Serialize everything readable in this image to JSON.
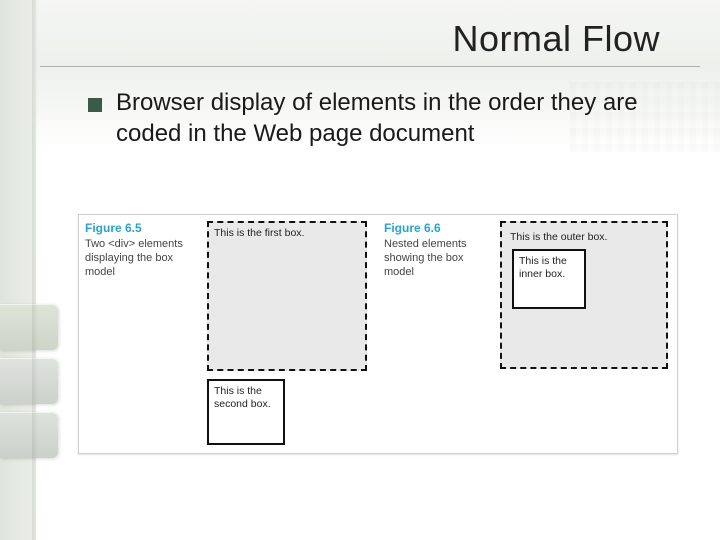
{
  "slide": {
    "title": "Normal Flow",
    "bullet": "Browser display of elements in the order they are coded in the Web page document",
    "colors": {
      "bullet_square": "#3b5a4a",
      "title_color": "#222222",
      "underline": "#aab0a9",
      "figure_caption_accent": "#2aa3c9",
      "dashed_border": "#111111",
      "dashed_fill": "#e9e9e9",
      "panel_border": "#cfcfcf"
    }
  },
  "figures": {
    "left": {
      "number": "Figure 6.5",
      "caption": "Two <div> elements displaying the box model",
      "box1_label": "This is the first box.",
      "box2_label": "This is the second box."
    },
    "right": {
      "number": "Figure 6.6",
      "caption": "Nested elements showing the box model",
      "outer_label": "This is the outer box.",
      "inner_label": "This is the inner box."
    }
  }
}
